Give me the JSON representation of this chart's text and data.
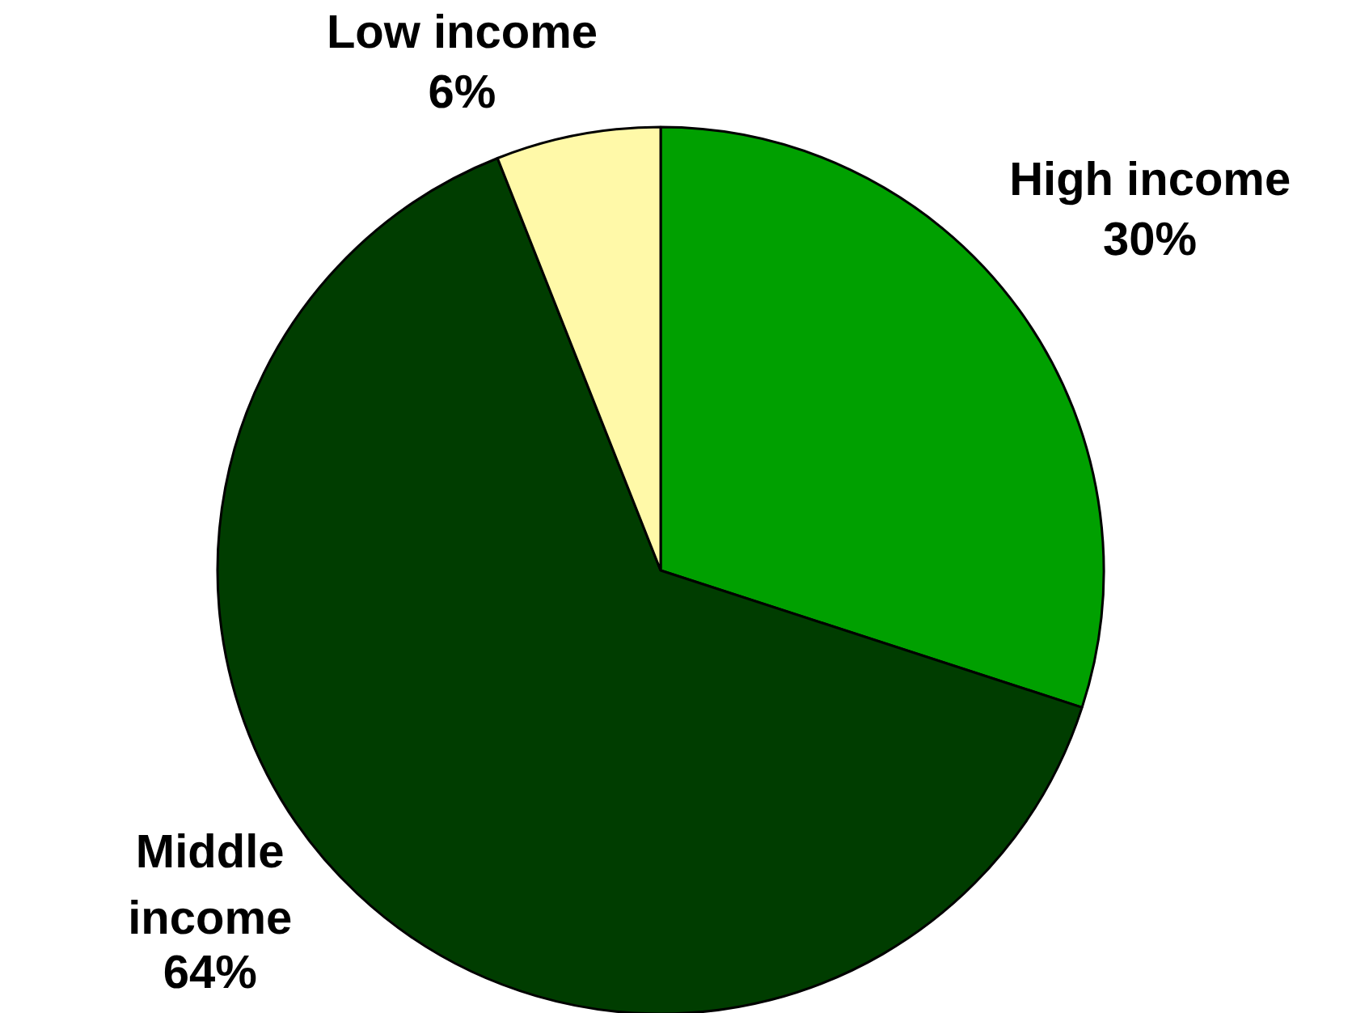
{
  "chart_data": {
    "type": "pie",
    "categories": [
      "High income",
      "Middle income",
      "Low income"
    ],
    "values": [
      30,
      64,
      6
    ],
    "colors": [
      "#00a000",
      "#003d00",
      "#fff9a8"
    ],
    "value_labels": [
      "30%",
      "64%",
      "6%"
    ]
  }
}
